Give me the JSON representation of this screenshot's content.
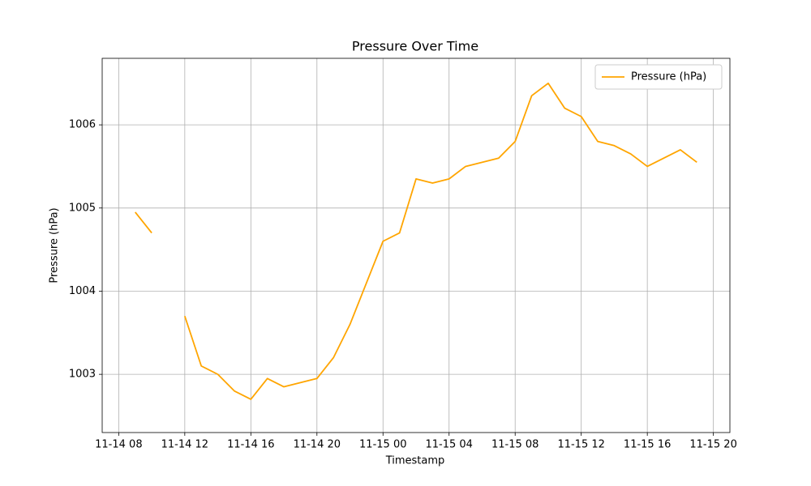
{
  "chart_data": {
    "type": "line",
    "title": "Pressure Over Time",
    "x_label": "Timestamp",
    "y_label": "Pressure (hPa)",
    "x": [
      "11-14 09",
      "11-14 10",
      "11-14 11",
      "11-14 12",
      "11-14 13",
      "11-14 14",
      "11-14 15",
      "11-14 16",
      "11-14 17",
      "11-14 18",
      "11-14 19",
      "11-14 20",
      "11-14 21",
      "11-14 22",
      "11-14 23",
      "11-15 00",
      "11-15 01",
      "11-15 02",
      "11-15 03",
      "11-15 04",
      "11-15 05",
      "11-15 06",
      "11-15 07",
      "11-15 08",
      "11-15 09",
      "11-15 10",
      "11-15 11",
      "11-15 12",
      "11-15 13",
      "11-15 14",
      "11-15 15",
      "11-15 16",
      "11-15 17",
      "11-15 18",
      "11-15 19"
    ],
    "series": [
      {
        "name": "Pressure (hPa)",
        "color": "#ffa500",
        "values": [
          1004.95,
          1004.7,
          null,
          1003.7,
          1003.1,
          1003.0,
          1002.8,
          1002.7,
          1002.95,
          1002.85,
          1002.9,
          1002.95,
          1003.2,
          1003.6,
          1004.1,
          1004.6,
          1004.7,
          1005.35,
          1005.3,
          1005.35,
          1005.5,
          1005.55,
          1005.6,
          1005.8,
          1006.35,
          1006.5,
          1006.2,
          1006.1,
          1005.8,
          1005.75,
          1005.65,
          1005.5,
          1005.6,
          1005.7,
          1005.55
        ]
      }
    ],
    "xlim": [
      "11-14 07",
      "11-15 21"
    ],
    "xticks": [
      "11-14 08",
      "11-14 12",
      "11-14 16",
      "11-14 20",
      "11-15 00",
      "11-15 04",
      "11-15 08",
      "11-15 12",
      "11-15 16",
      "11-15 20"
    ],
    "ylim": [
      1002.3,
      1006.8
    ],
    "yticks": [
      1003,
      1004,
      1005,
      1006
    ],
    "grid": true,
    "legend": "upper right"
  }
}
